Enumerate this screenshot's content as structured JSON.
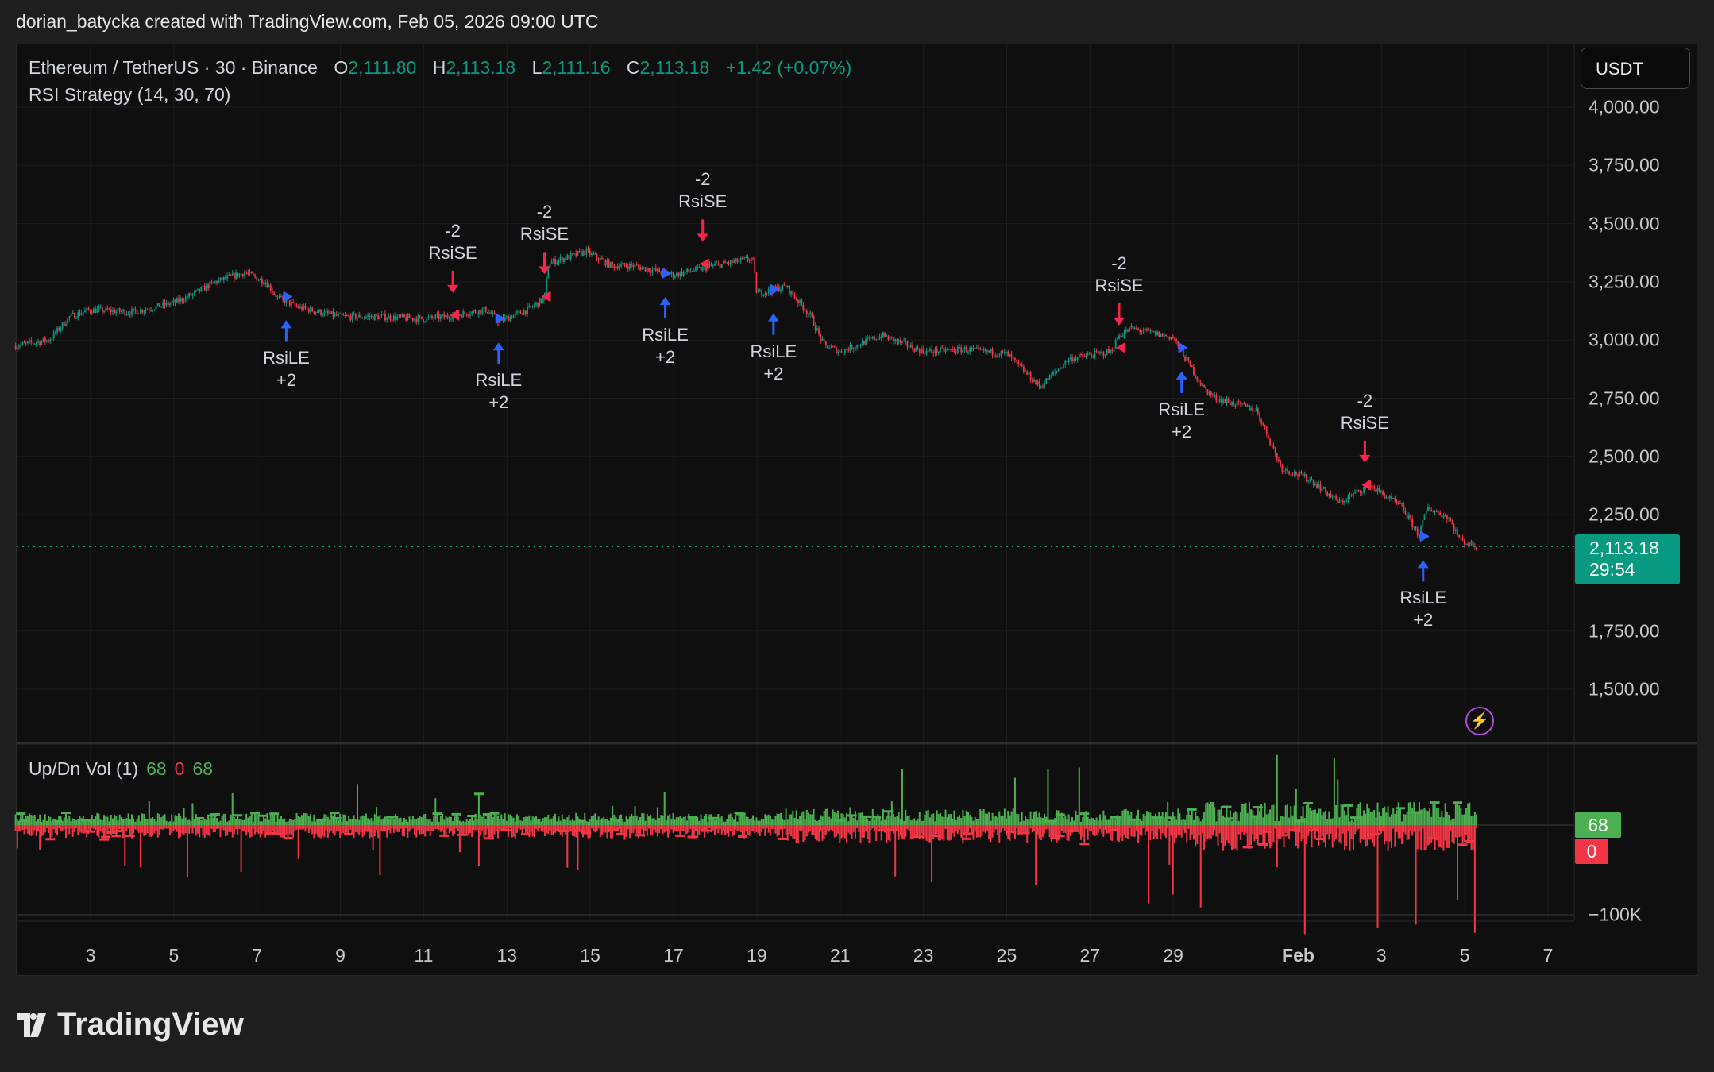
{
  "credit": "dorian_batycka created with TradingView.com, Feb 05, 2026 09:00 UTC",
  "legend": {
    "symbol": "Ethereum / TetherUS · 30 · Binance",
    "o_label": "O",
    "o": "2,111.80",
    "h_label": "H",
    "h": "2,113.18",
    "l_label": "L",
    "l": "2,111.16",
    "c_label": "C",
    "c": "2,113.18",
    "change": "+1.42 (+0.07%)",
    "strategy": "RSI Strategy (14, 30, 70)"
  },
  "currency_button": "USDT",
  "price_badge": {
    "price": "2,113.18",
    "countdown": "29:54"
  },
  "volume": {
    "title": "Up/Dn Vol (1)",
    "up": "68",
    "down": "0",
    "delta": "68",
    "badge_up": "68",
    "badge_down": "0",
    "axis_label": "−100K"
  },
  "logo": "TradingView",
  "colors": {
    "up": "#089981",
    "down": "#f23645",
    "vol_up": "#4caf50",
    "vol_down": "#f23645",
    "long_signal": "#2962ff",
    "short_signal": "#f7254a",
    "background": "#0f0f0f"
  },
  "chart_data": {
    "type": "candlestick",
    "y_ticks": [
      "4,000.00",
      "3,750.00",
      "3,500.00",
      "3,250.00",
      "3,000.00",
      "2,750.00",
      "2,500.00",
      "2,250.00",
      "1,750.00",
      "1,500.00"
    ],
    "y_tick_values": [
      4000,
      3750,
      3500,
      3250,
      3000,
      2750,
      2500,
      2250,
      1750,
      1500
    ],
    "x_ticks": [
      "3",
      "5",
      "7",
      "9",
      "11",
      "13",
      "15",
      "17",
      "19",
      "21",
      "23",
      "25",
      "27",
      "29",
      "Feb",
      "3",
      "5",
      "7"
    ],
    "x_tick_days": [
      3,
      5,
      7,
      9,
      11,
      13,
      15,
      17,
      19,
      21,
      23,
      25,
      27,
      29,
      32,
      34,
      36,
      38
    ],
    "grid": true,
    "last_price": 2113.18,
    "price_path": [
      [
        1.2,
        2975
      ],
      [
        2.0,
        3000
      ],
      [
        2.5,
        3100
      ],
      [
        3,
        3130
      ],
      [
        4,
        3120
      ],
      [
        5,
        3160
      ],
      [
        5.5,
        3200
      ],
      [
        6,
        3250
      ],
      [
        6.7,
        3290
      ],
      [
        7.2,
        3250
      ],
      [
        7.5,
        3180
      ],
      [
        8,
        3140
      ],
      [
        9,
        3100
      ],
      [
        10,
        3100
      ],
      [
        11,
        3090
      ],
      [
        11.5,
        3100
      ],
      [
        12.5,
        3130
      ],
      [
        12.8,
        3080
      ],
      [
        13.5,
        3130
      ],
      [
        13.9,
        3180
      ],
      [
        14,
        3330
      ],
      [
        14.9,
        3380
      ],
      [
        15.5,
        3320
      ],
      [
        16,
        3320
      ],
      [
        17,
        3280
      ],
      [
        17.5,
        3300
      ],
      [
        18,
        3320
      ],
      [
        18.9,
        3350
      ],
      [
        19,
        3200
      ],
      [
        19.7,
        3230
      ],
      [
        20.3,
        3100
      ],
      [
        20.6,
        2980
      ],
      [
        21,
        2950
      ],
      [
        22,
        3020
      ],
      [
        23,
        2950
      ],
      [
        24,
        2960
      ],
      [
        25,
        2940
      ],
      [
        25.8,
        2800
      ],
      [
        26.5,
        2920
      ],
      [
        27.5,
        2950
      ],
      [
        27.7,
        3020
      ],
      [
        28,
        3050
      ],
      [
        29,
        3010
      ],
      [
        29.7,
        2800
      ],
      [
        30,
        2750
      ],
      [
        31,
        2700
      ],
      [
        31.6,
        2450
      ],
      [
        32.3,
        2400
      ],
      [
        33,
        2300
      ],
      [
        33.7,
        2380
      ],
      [
        34.5,
        2280
      ],
      [
        34.9,
        2160
      ],
      [
        35.1,
        2280
      ],
      [
        35.6,
        2240
      ],
      [
        35.9,
        2140
      ],
      [
        36.3,
        2113
      ]
    ],
    "signals": [
      {
        "type": "long",
        "label": "RsiLE",
        "qty": "+2",
        "day": 7.7,
        "price": 3180
      },
      {
        "type": "short",
        "label": "RsiSE",
        "qty": "-2",
        "day": 11.7,
        "price": 3100
      },
      {
        "type": "long",
        "label": "RsiLE",
        "qty": "+2",
        "day": 12.8,
        "price": 3085
      },
      {
        "type": "short",
        "label": "RsiSE",
        "qty": "-2",
        "day": 13.9,
        "price": 3180
      },
      {
        "type": "long",
        "label": "RsiLE",
        "qty": "+2",
        "day": 16.8,
        "price": 3280
      },
      {
        "type": "short",
        "label": "RsiSE",
        "qty": "-2",
        "day": 17.7,
        "price": 3320
      },
      {
        "type": "long",
        "label": "RsiLE",
        "qty": "+2",
        "day": 19.4,
        "price": 3210
      },
      {
        "type": "short",
        "label": "RsiSE",
        "qty": "-2",
        "day": 27.7,
        "price": 2960
      },
      {
        "type": "long",
        "label": "RsiLE",
        "qty": "+2",
        "day": 29.2,
        "price": 2960
      },
      {
        "type": "short",
        "label": "RsiSE",
        "qty": "-2",
        "day": 33.6,
        "price": 2370
      },
      {
        "type": "long",
        "label": "RsiLE",
        "qty": "+2",
        "day": 35.0,
        "price": 2150
      }
    ]
  }
}
